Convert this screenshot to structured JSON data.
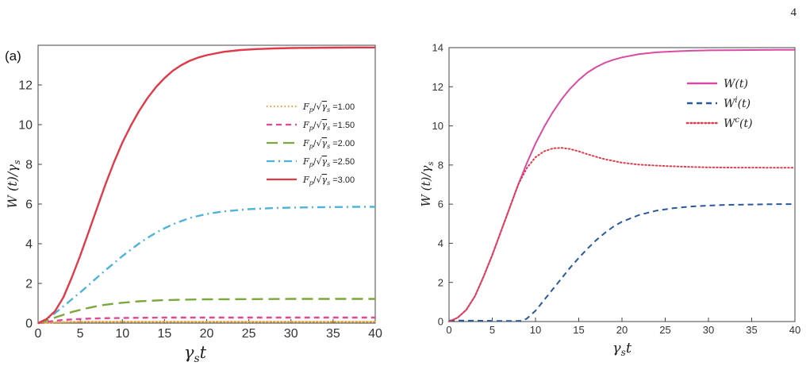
{
  "page_number": "4",
  "colors": {
    "gold": "#e8a33a",
    "pink": "#dd4a9c",
    "green": "#7aa83c",
    "cyan": "#4cb4d8",
    "red": "#e03a48",
    "magenta": "#d94aa4",
    "navy": "#2a58a0",
    "dotred": "#e23a48"
  },
  "chart_data": [
    {
      "type": "line",
      "panel_label": "(a)",
      "xlabel": "γst",
      "ylabel": "W (t)/γs",
      "xlim": [
        0,
        40
      ],
      "ylim": [
        0,
        14
      ],
      "xticks": [
        "0",
        "5",
        "10",
        "15",
        "20",
        "25",
        "30",
        "35",
        "40"
      ],
      "yticks": [
        "0",
        "2",
        "4",
        "6",
        "8",
        "10",
        "12"
      ],
      "ytick_values": [
        0,
        2,
        4,
        6,
        8,
        10,
        12
      ],
      "legend_position": "right",
      "series": [
        {
          "name": "Fp/√γs =1.00",
          "legend_value": "=1.00",
          "color": "#e8a33a",
          "style": "dotted",
          "x": [
            0,
            1,
            2,
            3,
            4,
            5,
            6,
            8,
            10,
            15,
            20,
            25,
            30,
            35,
            40
          ],
          "y": [
            0,
            0.02,
            0.04,
            0.05,
            0.06,
            0.065,
            0.07,
            0.07,
            0.07,
            0.07,
            0.07,
            0.07,
            0.07,
            0.07,
            0.07
          ]
        },
        {
          "name": "Fp/√γs =1.50",
          "legend_value": "=1.50",
          "color": "#dd4a9c",
          "style": "dashed",
          "x": [
            0,
            1,
            2,
            3,
            4,
            5,
            6,
            8,
            10,
            12,
            15,
            20,
            25,
            30,
            35,
            40
          ],
          "y": [
            0,
            0.06,
            0.12,
            0.16,
            0.19,
            0.21,
            0.23,
            0.25,
            0.26,
            0.27,
            0.28,
            0.28,
            0.28,
            0.28,
            0.28,
            0.28
          ]
        },
        {
          "name": "Fp/√γs =2.00",
          "legend_value": "=2.00",
          "color": "#7aa83c",
          "style": "longdash",
          "x": [
            0,
            1,
            2,
            3,
            4,
            5,
            6,
            7,
            8,
            10,
            12,
            15,
            18,
            20,
            25,
            30,
            35,
            40
          ],
          "y": [
            0,
            0.12,
            0.28,
            0.42,
            0.56,
            0.67,
            0.77,
            0.86,
            0.93,
            1.03,
            1.1,
            1.16,
            1.19,
            1.2,
            1.21,
            1.22,
            1.22,
            1.22
          ]
        },
        {
          "name": "Fp/√γs =2.50",
          "legend_value": "=2.50",
          "color": "#4cb4d8",
          "style": "dashdot",
          "x": [
            0,
            1,
            2,
            3,
            4,
            5,
            6,
            7,
            8,
            9,
            10,
            11,
            12,
            13,
            14,
            15,
            16,
            18,
            20,
            22,
            25,
            28,
            30,
            33,
            35,
            38,
            40
          ],
          "y": [
            0,
            0.2,
            0.5,
            0.85,
            1.2,
            1.55,
            1.92,
            2.3,
            2.67,
            3.02,
            3.38,
            3.7,
            4.02,
            4.3,
            4.56,
            4.78,
            4.98,
            5.3,
            5.5,
            5.63,
            5.74,
            5.8,
            5.82,
            5.84,
            5.85,
            5.86,
            5.86
          ]
        },
        {
          "name": "Fp/√γs =3.00",
          "legend_value": "=3.00",
          "color": "#e03a48",
          "style": "solid",
          "x": [
            0,
            1,
            2,
            3,
            4,
            5,
            6,
            7,
            8,
            9,
            10,
            11,
            12,
            13,
            14,
            15,
            16,
            17,
            18,
            19,
            20,
            22,
            24,
            26,
            28,
            30,
            32,
            35,
            38,
            40
          ],
          "y": [
            0,
            0.2,
            0.6,
            1.3,
            2.3,
            3.4,
            4.6,
            5.8,
            7.0,
            8.1,
            9.1,
            9.95,
            10.7,
            11.35,
            11.9,
            12.35,
            12.72,
            13.0,
            13.22,
            13.38,
            13.5,
            13.67,
            13.76,
            13.81,
            13.84,
            13.86,
            13.87,
            13.88,
            13.89,
            13.89
          ]
        }
      ]
    },
    {
      "type": "line",
      "xlabel": "γst",
      "ylabel": "W (t)/γs",
      "xlim": [
        0,
        40
      ],
      "ylim": [
        0,
        14
      ],
      "xticks": [
        "0",
        "5",
        "10",
        "15",
        "20",
        "25",
        "30",
        "35",
        "40"
      ],
      "yticks": [
        "0",
        "2",
        "4",
        "6",
        "8",
        "10",
        "12",
        "14"
      ],
      "ytick_values": [
        0,
        2,
        4,
        6,
        8,
        10,
        12,
        14
      ],
      "legend_position": "top-right",
      "series": [
        {
          "name": "W(t)",
          "legend_label": "W(t)",
          "color": "#d94aa4",
          "style": "solid",
          "x": [
            0,
            1,
            2,
            3,
            4,
            5,
            6,
            7,
            8,
            9,
            10,
            11,
            12,
            13,
            14,
            15,
            16,
            17,
            18,
            19,
            20,
            22,
            24,
            26,
            28,
            30,
            32,
            35,
            38,
            40
          ],
          "y": [
            0,
            0.2,
            0.6,
            1.3,
            2.3,
            3.4,
            4.6,
            5.8,
            7.0,
            8.1,
            9.1,
            9.95,
            10.7,
            11.35,
            11.9,
            12.35,
            12.72,
            13.0,
            13.22,
            13.38,
            13.5,
            13.67,
            13.76,
            13.81,
            13.84,
            13.86,
            13.87,
            13.88,
            13.89,
            13.89
          ]
        },
        {
          "name": "W^i(t)",
          "legend_label": "W",
          "legend_sup": "i",
          "legend_tail": "(t)",
          "color": "#2a58a0",
          "style": "dashed",
          "x": [
            0,
            2,
            4,
            6,
            8,
            8.5,
            9,
            10,
            11,
            12,
            13,
            14,
            15,
            16,
            17,
            18,
            19,
            20,
            22,
            24,
            26,
            28,
            30,
            32,
            35,
            38,
            40
          ],
          "y": [
            0.05,
            0.05,
            0.04,
            0.03,
            0.03,
            0.05,
            0.15,
            0.55,
            1.1,
            1.65,
            2.2,
            2.75,
            3.25,
            3.72,
            4.15,
            4.52,
            4.85,
            5.1,
            5.45,
            5.67,
            5.8,
            5.88,
            5.93,
            5.96,
            5.98,
            6.0,
            6.0
          ]
        },
        {
          "name": "W^c(t)",
          "legend_label": "W",
          "legend_sup": "c",
          "legend_tail": "(t)",
          "color": "#e23a48",
          "style": "dotted",
          "x": [
            0,
            1,
            2,
            3,
            4,
            5,
            6,
            7,
            8,
            9,
            10,
            11,
            12,
            13,
            14,
            15,
            16,
            18,
            20,
            22,
            25,
            28,
            30,
            33,
            35,
            38,
            40
          ],
          "y": [
            0,
            0.2,
            0.6,
            1.3,
            2.3,
            3.4,
            4.6,
            5.8,
            7.0,
            7.85,
            8.4,
            8.7,
            8.85,
            8.88,
            8.82,
            8.7,
            8.55,
            8.3,
            8.12,
            8.02,
            7.95,
            7.9,
            7.88,
            7.87,
            7.87,
            7.86,
            7.86
          ]
        }
      ]
    }
  ]
}
